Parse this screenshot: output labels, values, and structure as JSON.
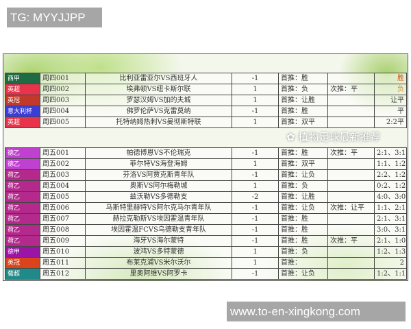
{
  "watermarks": {
    "top": "TG: MYYJJPP",
    "bottom": "www.to-en-xingkong.com",
    "overlay": "植物足球最新推荐"
  },
  "section1": [
    {
      "league": "西甲",
      "color": "#1f6b44",
      "code": "周四001",
      "match": "比利亚雷亚尔VS西班牙人",
      "handicap": "-1",
      "pick1": "首推：胜",
      "pick2": "",
      "result": "胜",
      "result_color": "#d2541c"
    },
    {
      "league": "英超",
      "color": "#e8344a",
      "code": "周四002",
      "match": "埃弗顿VS纽卡斯尔联",
      "handicap": "1",
      "pick1": "首推：负",
      "pick2": "次推：平",
      "result": "负",
      "result_color": "#d98a1c"
    },
    {
      "league": "英冠",
      "color": "#c0392b",
      "code": "周四003",
      "match": "罗瑟汉姆VS加的夫城",
      "handicap": "1",
      "pick1": "首推：让胜",
      "pick2": "",
      "result": "让平",
      "result_color": "#333333"
    },
    {
      "league": "意大利杯",
      "color": "#3c3cd8",
      "code": "周四004",
      "match": "佛罗伦萨VS克雷莫纳",
      "handicap": "-1",
      "pick1": "首推：胜",
      "pick2": "",
      "result": "平",
      "result_color": "#333333"
    },
    {
      "league": "英超",
      "color": "#e8344a",
      "code": "周四005",
      "match": "托特纳姆热刺VS曼彻斯特联",
      "handicap": "1",
      "pick1": "首推：双平",
      "pick2": "",
      "result": "2:2平",
      "result_color": "#333333"
    }
  ],
  "section2": [
    {
      "league": "德乙",
      "color": "#c040d0",
      "code": "周五001",
      "match": "帕德博恩VS不伦瑞克",
      "handicap": "-1",
      "pick1": "首推：胜",
      "pick2": "次推：平",
      "result": "2:1、3:1"
    },
    {
      "league": "德乙",
      "color": "#c040d0",
      "code": "周五002",
      "match": "菲尔特VS海登海姆",
      "handicap": "1",
      "pick1": "首推：双平",
      "pick2": "",
      "result": "1:1、1:2"
    },
    {
      "league": "荷乙",
      "color": "#b42a8c",
      "code": "周五003",
      "match": "芬洛VS阿贾克斯青年队",
      "handicap": "-1",
      "pick1": "首推：让负",
      "pick2": "",
      "result": "2:2、1:2"
    },
    {
      "league": "荷乙",
      "color": "#b42a8c",
      "code": "周五004",
      "match": "奥斯VS阿尔梅勒城",
      "handicap": "1",
      "pick1": "首推：负",
      "pick2": "",
      "result": "0:2、1:2"
    },
    {
      "league": "荷乙",
      "color": "#b42a8c",
      "code": "周五005",
      "match": "兹沃勒VS多德勒支",
      "handicap": "-2",
      "pick1": "首推：让胜",
      "pick2": "",
      "result": "4:0、3:0"
    },
    {
      "league": "荷乙",
      "color": "#b42a8c",
      "code": "周五006",
      "match": "马斯特里赫特VS阿尔克马尔青年队",
      "handicap": "-1",
      "pick1": "首推：让负",
      "pick2": "次推：让平",
      "result": "1:1、2:1"
    },
    {
      "league": "荷乙",
      "color": "#b42a8c",
      "code": "周五007",
      "match": "赫拉克勒斯VS埃因霍温青年队",
      "handicap": "-1",
      "pick1": "首推：胜",
      "pick2": "",
      "result": "2:1、3:1"
    },
    {
      "league": "荷乙",
      "color": "#b42a8c",
      "code": "周五008",
      "match": "埃因霍温FCVS乌德勒支青年队",
      "handicap": "-1",
      "pick1": "首推：胜",
      "pick2": "",
      "result": "3:0、3:1"
    },
    {
      "league": "荷乙",
      "color": "#b42a8c",
      "code": "周五009",
      "match": "海牙VS海尔蒙特",
      "handicap": "-1",
      "pick1": "首推：胜",
      "pick2": "次推：平",
      "result": "2:1、1:0"
    },
    {
      "league": "德甲",
      "color": "#9a14a6",
      "code": "周五010",
      "match": "波鸿VS多特蒙德",
      "handicap": "1",
      "pick1": "首推：负",
      "pick2": "",
      "result": "1:2、1:3"
    },
    {
      "league": "英冠",
      "color": "#d9441c",
      "code": "周五011",
      "match": "布莱克浦VS米尔沃尔",
      "handicap": "1",
      "pick1": "首推：",
      "pick2": "",
      "result": "2"
    },
    {
      "league": "葡超",
      "color": "#1f8a88",
      "code": "周五012",
      "match": "里奥阿维VS阿罗卡",
      "handicap": "-1",
      "pick1": "首推：让负",
      "pick2": "",
      "result": "1:2、1:1"
    }
  ]
}
